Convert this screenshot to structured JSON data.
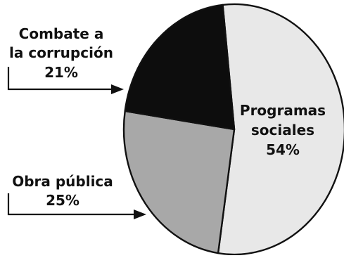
{
  "chart_data": {
    "type": "pie",
    "slices": [
      {
        "label_lines": [
          "Programas",
          "sociales"
        ],
        "pct_label": "54%",
        "value": 54,
        "color": "#e8e8e8"
      },
      {
        "label_lines": [
          "Obra pública"
        ],
        "pct_label": "25%",
        "value": 25,
        "color": "#a8a8a8"
      },
      {
        "label_lines": [
          "Combate a",
          "la corrupción"
        ],
        "pct_label": "21%",
        "value": 21,
        "color": "#0d0d0d"
      }
    ]
  }
}
